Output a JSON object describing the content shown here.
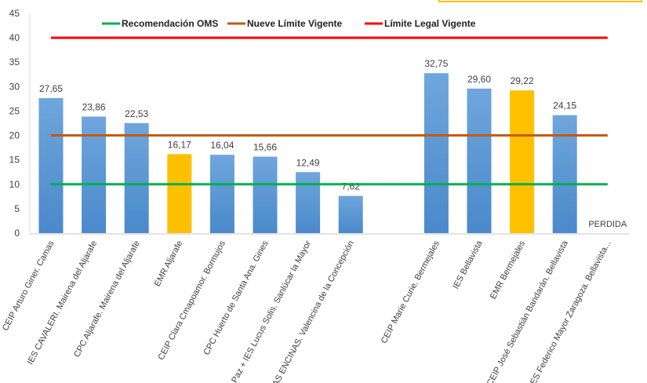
{
  "chart_data": {
    "type": "bar",
    "title": "",
    "xlabel": "",
    "ylabel": "",
    "ylim": [
      0,
      45
    ],
    "yticks": [
      0,
      5,
      10,
      15,
      20,
      25,
      30,
      35,
      40,
      45
    ],
    "grid": false,
    "legend_position": "top",
    "categories": [
      "CEIP Arturo Giner. Camas",
      "IES CAVALERI. Mairena del Aljarafe",
      "CPC Aljarafe. Mairena del Aljarafe",
      "EMR Aljarafe",
      "CEIP Clara Cmapoamor. Bormujos",
      "CPC Huerto de Santa Ana. Gines",
      "La Paz + IES Lucus Solis. Sanlúcar la Mayor",
      "LAS ENCINAS. Valencina de la Concepción",
      "",
      "CEIP Marie Curie. Bermejales",
      "IES Bellavista",
      "EMR Bermejales",
      "CEIP José Sebastián Bandarán. Bellavista",
      "IES Federico Mayor Zaragoza. Bellavista..."
    ],
    "values": [
      27.65,
      23.86,
      22.53,
      16.17,
      16.04,
      15.66,
      12.49,
      7.62,
      null,
      32.75,
      29.6,
      29.22,
      24.15,
      null
    ],
    "value_labels": [
      "27,65",
      "23,86",
      "22,53",
      "16,17",
      "16,04",
      "15,66",
      "12,49",
      "7,62",
      "",
      "32,75",
      "29,60",
      "29,22",
      "24,15",
      ""
    ],
    "highlight": [
      false,
      false,
      false,
      true,
      false,
      false,
      false,
      false,
      false,
      false,
      false,
      true,
      false,
      false
    ],
    "annotations": [
      {
        "category_index": 13,
        "text": "PERDIDA"
      }
    ],
    "colors": {
      "bar": "#5b9bd5",
      "bar_highlight": "#ffc000",
      "axis": "#d9d9d9"
    },
    "reference_lines": [
      {
        "name": "Recomendación OMS",
        "value": 10,
        "color": "#00b050"
      },
      {
        "name": "Nueve Límite Vigente",
        "value": 20,
        "color": "#c55a11"
      },
      {
        "name": "Límite Legal Vigente",
        "value": 40,
        "color": "#ff0000"
      }
    ]
  }
}
